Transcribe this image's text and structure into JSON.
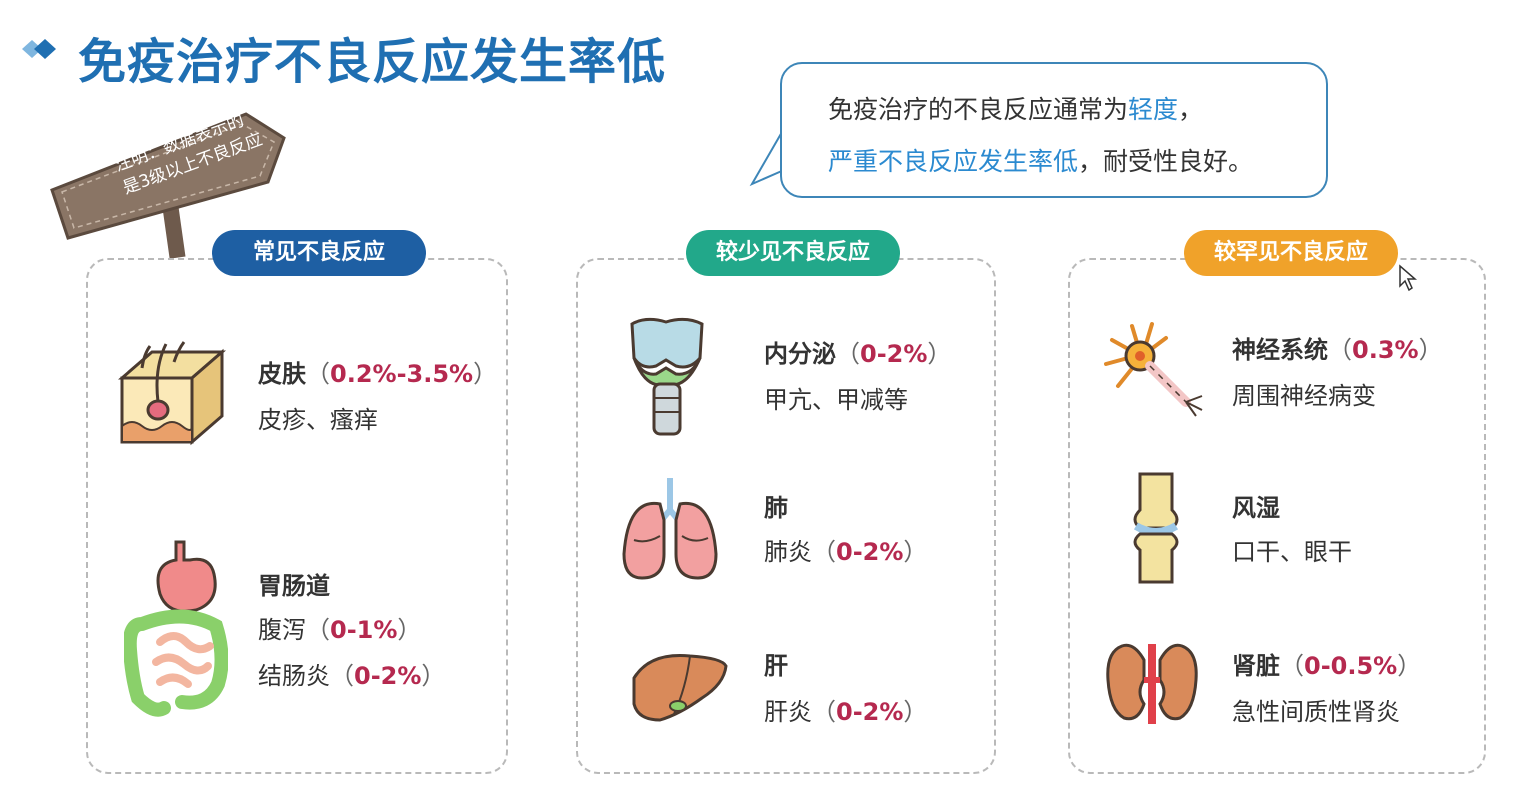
{
  "header": {
    "title": "免疫治疗不良反应发生率低"
  },
  "note": {
    "line1": "注明：数据表示的",
    "line2": "是3级以上不良反应"
  },
  "callout": {
    "l1_a": "免疫治疗的不良反应通常为",
    "l1_b": "轻度",
    "l1_c": "，",
    "l2_a": "严重不良反应发生率低",
    "l2_b": "，耐受性良好。"
  },
  "colors": {
    "title": "#1f6fb2",
    "common": "#1e5fa3",
    "less": "#22a88a",
    "rare": "#f0a22a",
    "pct": "#b5294f"
  },
  "panels": [
    {
      "label": "常见不良反应",
      "items": [
        {
          "icon": "skin-icon",
          "name": "皮肤",
          "pct": "0.2%-3.5%",
          "lines": [
            "皮疹、瘙痒"
          ]
        },
        {
          "icon": "gi-tract-icon",
          "name": "胃肠道",
          "lines": [
            "腹泻",
            "结肠炎"
          ],
          "pcts": [
            "0-1%",
            "0-2%"
          ]
        }
      ]
    },
    {
      "label": "较少见不良反应",
      "items": [
        {
          "icon": "thyroid-icon",
          "name": "内分泌",
          "pct": "0-2%",
          "lines": [
            "甲亢、甲减等"
          ]
        },
        {
          "icon": "lung-icon",
          "name": "肺",
          "lines": [
            "肺炎"
          ],
          "pcts": [
            "0-2%"
          ]
        },
        {
          "icon": "liver-icon",
          "name": "肝",
          "lines": [
            "肝炎"
          ],
          "pcts": [
            "0-2%"
          ]
        }
      ]
    },
    {
      "label": "较罕见不良反应",
      "items": [
        {
          "icon": "neuron-icon",
          "name": "神经系统",
          "pct": "0.3%",
          "lines": [
            "周围神经病变"
          ]
        },
        {
          "icon": "joint-icon",
          "name": "风湿",
          "lines": [
            "口干、眼干"
          ]
        },
        {
          "icon": "kidney-icon",
          "name": "肾脏",
          "pct": "0-0.5%",
          "lines": [
            "急性间质性肾炎"
          ]
        }
      ]
    }
  ]
}
